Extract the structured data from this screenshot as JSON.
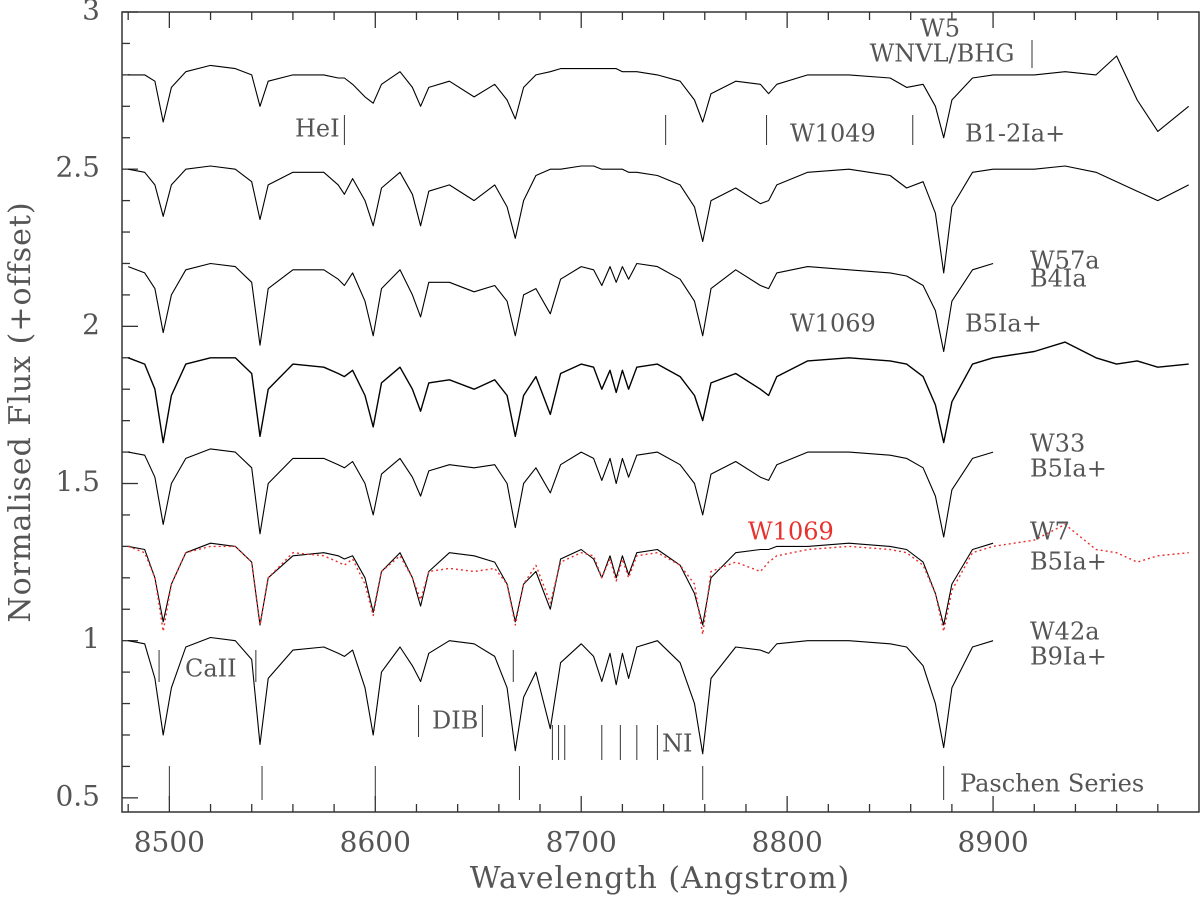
{
  "chart_data": {
    "type": "line",
    "xlabel": "Wavelength (Angstrom)",
    "ylabel": "Normalised Flux (+offset)",
    "xlim": [
      8477,
      9000
    ],
    "ylim": [
      0.455,
      3
    ],
    "xticks": [
      8500,
      8600,
      8700,
      8800,
      8900
    ],
    "yticks": [
      0.5,
      1,
      1.5,
      2,
      2.5,
      3
    ],
    "xminorticks": [
      8480,
      8520,
      8540,
      8560,
      8580,
      8620,
      8640,
      8660,
      8680,
      8720,
      8740,
      8760,
      8780,
      8820,
      8840,
      8860,
      8880,
      8920,
      8940,
      8960,
      8980
    ],
    "yminorticks": [
      0.6,
      0.7,
      0.8,
      0.9,
      1.1,
      1.2,
      1.3,
      1.4,
      1.6,
      1.7,
      1.8,
      1.9,
      2.1,
      2.2,
      2.3,
      2.4,
      2.6,
      2.7,
      2.8,
      2.9
    ],
    "x": [
      8480,
      8488,
      8493,
      8497,
      8501,
      8508,
      8520,
      8532,
      8540,
      8544,
      8548,
      8560,
      8575,
      8582,
      8585,
      8589,
      8595,
      8599,
      8603,
      8612,
      8618,
      8622,
      8626,
      8636,
      8648,
      8658,
      8664,
      8668,
      8672,
      8678,
      8685,
      8690,
      8700,
      8706,
      8710,
      8714,
      8717,
      8720,
      8723,
      8727,
      8737,
      8748,
      8755,
      8759,
      8763,
      8775,
      8787,
      8791,
      8795,
      8810,
      8830,
      8850,
      8858,
      8866,
      8872,
      8876,
      8880,
      8890,
      8900,
      8920,
      8935,
      8950,
      8960,
      8970,
      8980,
      8995
    ],
    "series": [
      {
        "name": "W5",
        "annotation": "WNVL/BHG",
        "color": "#000000",
        "values": [
          2.8,
          2.8,
          2.78,
          2.65,
          2.76,
          2.81,
          2.83,
          2.82,
          2.8,
          2.7,
          2.78,
          2.8,
          2.8,
          2.79,
          2.79,
          2.77,
          2.73,
          2.71,
          2.77,
          2.81,
          2.76,
          2.7,
          2.76,
          2.78,
          2.73,
          2.77,
          2.72,
          2.66,
          2.76,
          2.8,
          2.81,
          2.82,
          2.82,
          2.82,
          2.82,
          2.82,
          2.82,
          2.81,
          2.81,
          2.81,
          2.8,
          2.78,
          2.72,
          2.65,
          2.74,
          2.78,
          2.77,
          2.74,
          2.77,
          2.8,
          2.8,
          2.79,
          2.76,
          2.77,
          2.7,
          2.6,
          2.72,
          2.79,
          2.8,
          2.8,
          2.81,
          2.8,
          2.86,
          2.72,
          2.62,
          2.7
        ]
      },
      {
        "name": "W1049",
        "annotation": "B1-2Ia+",
        "color": "#000000",
        "values": [
          2.5,
          2.49,
          2.45,
          2.35,
          2.45,
          2.5,
          2.51,
          2.5,
          2.46,
          2.34,
          2.45,
          2.49,
          2.49,
          2.45,
          2.42,
          2.47,
          2.4,
          2.32,
          2.44,
          2.49,
          2.42,
          2.32,
          2.43,
          2.45,
          2.4,
          2.45,
          2.38,
          2.28,
          2.4,
          2.48,
          2.5,
          2.5,
          2.51,
          2.51,
          2.5,
          2.5,
          2.5,
          2.5,
          2.49,
          2.49,
          2.48,
          2.45,
          2.38,
          2.27,
          2.4,
          2.44,
          2.39,
          2.4,
          2.45,
          2.49,
          2.5,
          2.48,
          2.44,
          2.46,
          2.36,
          2.17,
          2.38,
          2.49,
          2.5,
          2.5,
          2.51,
          2.49,
          2.46,
          2.43,
          2.4,
          2.45
        ]
      },
      {
        "name": "W57a",
        "annotation": "B4Ia",
        "color": "#000000",
        "values": [
          2.19,
          2.17,
          2.12,
          1.98,
          2.1,
          2.18,
          2.2,
          2.19,
          2.14,
          1.94,
          2.12,
          2.18,
          2.18,
          2.15,
          2.13,
          2.17,
          2.08,
          1.97,
          2.12,
          2.18,
          2.1,
          2.03,
          2.14,
          2.14,
          2.11,
          2.13,
          2.08,
          1.97,
          2.1,
          2.12,
          2.04,
          2.15,
          2.19,
          2.18,
          2.13,
          2.19,
          2.14,
          2.19,
          2.15,
          2.2,
          2.19,
          2.15,
          2.08,
          1.97,
          2.12,
          2.18,
          2.13,
          2.12,
          2.17,
          2.19,
          2.18,
          2.17,
          2.16,
          2.13,
          2.05,
          1.92,
          2.08,
          2.18,
          2.2,
          null,
          null,
          null,
          null,
          null,
          null,
          null
        ]
      },
      {
        "name": "W1069",
        "annotation": "B5Ia+",
        "color": "#000000",
        "values": [
          1.9,
          1.88,
          1.8,
          1.63,
          1.78,
          1.88,
          1.9,
          1.9,
          1.85,
          1.65,
          1.8,
          1.88,
          1.87,
          1.85,
          1.84,
          1.86,
          1.78,
          1.68,
          1.82,
          1.87,
          1.8,
          1.73,
          1.82,
          1.83,
          1.8,
          1.83,
          1.78,
          1.65,
          1.78,
          1.84,
          1.72,
          1.85,
          1.88,
          1.87,
          1.8,
          1.86,
          1.79,
          1.86,
          1.8,
          1.87,
          1.88,
          1.84,
          1.78,
          1.7,
          1.82,
          1.85,
          1.8,
          1.78,
          1.84,
          1.89,
          1.9,
          1.89,
          1.88,
          1.84,
          1.75,
          1.63,
          1.76,
          1.88,
          1.9,
          1.92,
          1.95,
          1.9,
          1.88,
          1.89,
          1.87,
          1.88
        ]
      },
      {
        "name": "W33",
        "annotation": "B5Ia+",
        "color": "#000000",
        "values": [
          1.6,
          1.59,
          1.52,
          1.37,
          1.5,
          1.58,
          1.61,
          1.6,
          1.55,
          1.34,
          1.5,
          1.58,
          1.58,
          1.56,
          1.55,
          1.57,
          1.5,
          1.4,
          1.53,
          1.58,
          1.52,
          1.46,
          1.54,
          1.56,
          1.55,
          1.56,
          1.5,
          1.36,
          1.5,
          1.55,
          1.47,
          1.56,
          1.6,
          1.58,
          1.51,
          1.58,
          1.5,
          1.58,
          1.52,
          1.59,
          1.6,
          1.56,
          1.5,
          1.4,
          1.53,
          1.57,
          1.52,
          1.51,
          1.56,
          1.6,
          1.6,
          1.59,
          1.58,
          1.55,
          1.46,
          1.33,
          1.48,
          1.58,
          1.6,
          null,
          null,
          null,
          null,
          null,
          null,
          null
        ]
      },
      {
        "name": "W7",
        "annotation": "B5Ia+",
        "color": "#000000",
        "values": [
          1.3,
          1.29,
          1.2,
          1.06,
          1.18,
          1.28,
          1.31,
          1.3,
          1.25,
          1.05,
          1.2,
          1.27,
          1.28,
          1.27,
          1.26,
          1.27,
          1.2,
          1.09,
          1.22,
          1.28,
          1.2,
          1.11,
          1.22,
          1.28,
          1.27,
          1.25,
          1.18,
          1.06,
          1.18,
          1.22,
          1.1,
          1.26,
          1.29,
          1.26,
          1.2,
          1.27,
          1.2,
          1.27,
          1.21,
          1.28,
          1.29,
          1.24,
          1.15,
          1.05,
          1.2,
          1.28,
          1.29,
          1.29,
          1.3,
          1.3,
          1.31,
          1.3,
          1.29,
          1.25,
          1.15,
          1.05,
          1.18,
          1.29,
          1.31,
          null,
          null,
          null,
          null,
          null,
          null,
          null
        ]
      },
      {
        "name": "W1069",
        "color": "#e8302c",
        "dotted": true,
        "values": [
          1.3,
          1.28,
          1.2,
          1.03,
          1.18,
          1.28,
          1.3,
          1.3,
          1.25,
          1.05,
          1.2,
          1.28,
          1.27,
          1.25,
          1.24,
          1.26,
          1.18,
          1.08,
          1.22,
          1.27,
          1.2,
          1.13,
          1.22,
          1.23,
          1.22,
          1.23,
          1.18,
          1.05,
          1.18,
          1.24,
          1.12,
          1.25,
          1.28,
          1.27,
          1.2,
          1.26,
          1.19,
          1.26,
          1.2,
          1.27,
          1.28,
          1.24,
          1.18,
          1.02,
          1.22,
          1.25,
          1.22,
          1.25,
          1.27,
          1.29,
          1.3,
          1.29,
          1.28,
          1.24,
          1.15,
          1.03,
          1.16,
          1.28,
          1.3,
          1.32,
          1.37,
          1.29,
          1.28,
          1.25,
          1.27,
          1.28
        ]
      },
      {
        "name": "W42a",
        "annotation": "B9Ia+",
        "color": "#000000",
        "values": [
          1.0,
          0.99,
          0.88,
          0.7,
          0.85,
          0.98,
          1.01,
          1.0,
          0.94,
          0.67,
          0.88,
          0.97,
          0.98,
          0.96,
          0.95,
          0.97,
          0.85,
          0.7,
          0.9,
          0.98,
          0.92,
          0.87,
          0.96,
          1.0,
          0.99,
          0.95,
          0.85,
          0.65,
          0.82,
          0.9,
          0.72,
          0.93,
          0.99,
          0.95,
          0.87,
          0.96,
          0.86,
          0.96,
          0.88,
          0.98,
          1.0,
          0.93,
          0.8,
          0.64,
          0.88,
          0.98,
          0.97,
          0.96,
          0.99,
          1.0,
          1.0,
          0.99,
          0.98,
          0.92,
          0.8,
          0.66,
          0.85,
          0.98,
          1.0,
          null,
          null,
          null,
          null,
          null,
          null,
          null
        ]
      }
    ],
    "line_markers": [
      {
        "label": "HeI",
        "x": [
          8585,
          8741,
          8790,
          8861
        ]
      },
      {
        "label": "CaII",
        "x": [
          8495,
          8542,
          8667
        ]
      },
      {
        "label": "DIB",
        "x": [
          8621,
          8652
        ]
      },
      {
        "label": "NI",
        "x": [
          8686,
          8689,
          8692,
          8710,
          8719,
          8727,
          8737
        ]
      },
      {
        "label": "Paschen Series",
        "x": [
          8500,
          8545,
          8600,
          8670,
          8759,
          8876
        ]
      }
    ]
  }
}
